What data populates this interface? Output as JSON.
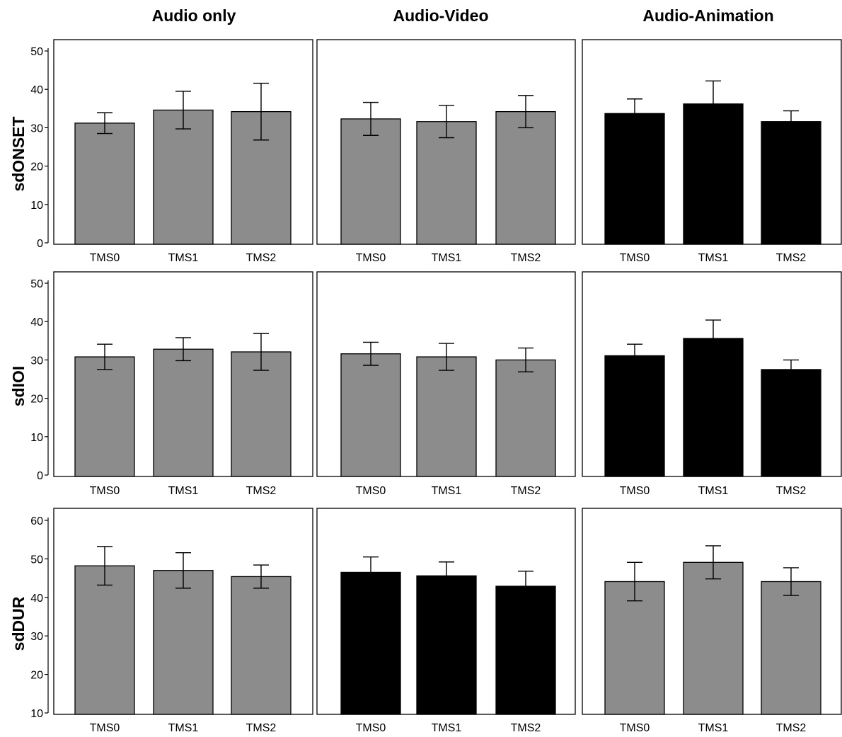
{
  "chart_data": {
    "type": "bar",
    "columns": [
      "Audio only",
      "Audio-Video",
      "Audio-Animation"
    ],
    "rows": [
      {
        "ylabel": "sdONSET",
        "ylim": [
          0,
          50
        ],
        "yticks": [
          0,
          10,
          20,
          30,
          40,
          50
        ]
      },
      {
        "ylabel": "sdIOI",
        "ylim": [
          0,
          50
        ],
        "yticks": [
          0,
          10,
          20,
          30,
          40,
          50
        ]
      },
      {
        "ylabel": "sdDUR",
        "ylim": [
          10,
          60
        ],
        "yticks": [
          10,
          20,
          30,
          40,
          50,
          60
        ]
      }
    ],
    "categories": [
      "TMS0",
      "TMS1",
      "TMS2"
    ],
    "colors": {
      "gray": "#8c8c8c",
      "black": "#000000"
    },
    "panels": [
      {
        "row": 0,
        "col": 0,
        "color": "gray",
        "values": [
          31.2,
          34.6,
          34.2
        ],
        "errors": [
          2.7,
          4.9,
          7.4
        ]
      },
      {
        "row": 0,
        "col": 1,
        "color": "gray",
        "values": [
          32.3,
          31.6,
          34.2
        ],
        "errors": [
          4.3,
          4.2,
          4.2
        ]
      },
      {
        "row": 0,
        "col": 2,
        "color": "black",
        "values": [
          33.7,
          36.2,
          31.6
        ],
        "errors": [
          3.8,
          6.0,
          2.8
        ]
      },
      {
        "row": 1,
        "col": 0,
        "color": "gray",
        "values": [
          30.8,
          32.8,
          32.1
        ],
        "errors": [
          3.3,
          3.0,
          4.8
        ]
      },
      {
        "row": 1,
        "col": 1,
        "color": "gray",
        "values": [
          31.6,
          30.8,
          30.0
        ],
        "errors": [
          3.0,
          3.5,
          3.1
        ]
      },
      {
        "row": 1,
        "col": 2,
        "color": "black",
        "values": [
          31.1,
          35.6,
          27.5
        ],
        "errors": [
          3.0,
          4.8,
          2.5
        ]
      },
      {
        "row": 2,
        "col": 0,
        "color": "gray",
        "values": [
          48.2,
          47.0,
          45.4
        ],
        "errors": [
          5.0,
          4.6,
          3.0
        ]
      },
      {
        "row": 2,
        "col": 1,
        "color": "black",
        "values": [
          46.5,
          45.6,
          42.9
        ],
        "errors": [
          4.0,
          3.6,
          3.9
        ]
      },
      {
        "row": 2,
        "col": 2,
        "color": "gray",
        "values": [
          44.1,
          49.1,
          44.1
        ],
        "errors": [
          5.0,
          4.3,
          3.6
        ]
      }
    ]
  }
}
